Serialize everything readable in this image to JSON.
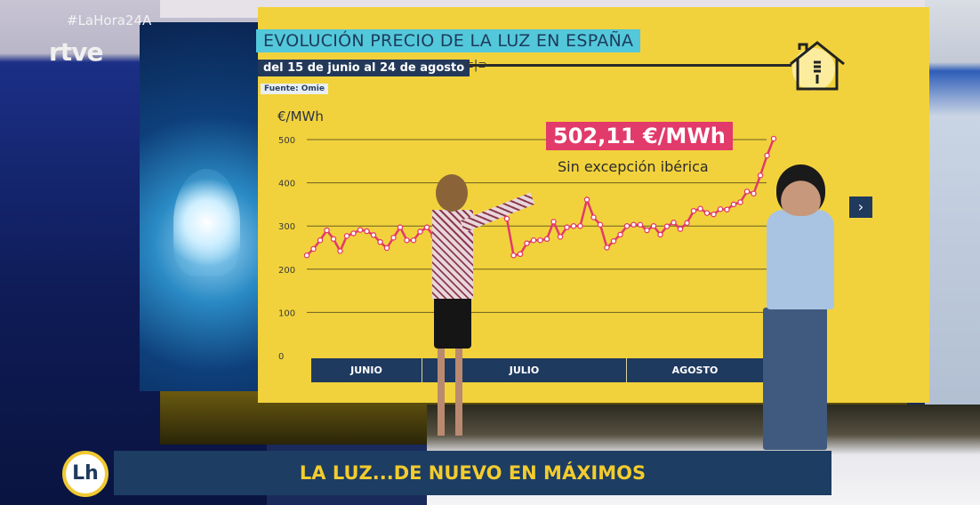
{
  "broadcast": {
    "hashtag": "#LaHora24A",
    "channel_logo": "rtve",
    "program_logo": "Lh",
    "ticker": "LA LUZ...DE NUEVO EN MÁXIMOS"
  },
  "graphic": {
    "title": "EVOLUCIÓN PRECIO DE LA LUZ EN ESPAÑA",
    "subtitle": "del 15 de junio al 24 de agosto",
    "source": "Fuente: Omie",
    "callout_value": "502,11 €/MWh",
    "callout_note": "Sin excepción ibérica",
    "nav_icon": "chevron-right-icon",
    "colors": {
      "background": "#f2d23c",
      "line": "#e23a6a",
      "title_bg": "#53c8da",
      "navy": "#1f3a5f"
    }
  },
  "chart_data": {
    "type": "line",
    "ylabel": "€/MWh",
    "ylim": [
      0,
      500
    ],
    "yticks": [
      "0",
      "100",
      "200",
      "300",
      "400",
      "500"
    ],
    "x_categories": [
      "JUNIO",
      "JULIO",
      "AGOSTO"
    ],
    "grid": true,
    "series": [
      {
        "points": [
          [
            "2022-06-15",
            232
          ],
          [
            "2022-06-16",
            247
          ],
          [
            "2022-06-17",
            267
          ],
          [
            "2022-06-18",
            290
          ],
          [
            "2022-06-19",
            270
          ],
          [
            "2022-06-20",
            242
          ],
          [
            "2022-06-21",
            277
          ],
          [
            "2022-06-22",
            283
          ],
          [
            "2022-06-23",
            291
          ],
          [
            "2022-06-24",
            288
          ],
          [
            "2022-06-25",
            279
          ],
          [
            "2022-06-26",
            263
          ],
          [
            "2022-06-27",
            249
          ],
          [
            "2022-06-28",
            273
          ],
          [
            "2022-06-29",
            297
          ],
          [
            "2022-06-30",
            267
          ],
          [
            "2022-07-01",
            267
          ],
          [
            "2022-07-02",
            287
          ],
          [
            "2022-07-03",
            297
          ],
          [
            "2022-07-04",
            277
          ],
          [
            "2022-07-05",
            307
          ],
          [
            "2022-07-06",
            303
          ],
          [
            "2022-07-14",
            340
          ],
          [
            "2022-07-15",
            317
          ],
          [
            "2022-07-16",
            232
          ],
          [
            "2022-07-17",
            235
          ],
          [
            "2022-07-18",
            260
          ],
          [
            "2022-07-19",
            267
          ],
          [
            "2022-07-20",
            267
          ],
          [
            "2022-07-21",
            270
          ],
          [
            "2022-07-22",
            310
          ],
          [
            "2022-07-23",
            275
          ],
          [
            "2022-07-24",
            297
          ],
          [
            "2022-07-25",
            300
          ],
          [
            "2022-07-26",
            300
          ],
          [
            "2022-07-27",
            361
          ],
          [
            "2022-07-28",
            320
          ],
          [
            "2022-07-29",
            303
          ],
          [
            "2022-07-30",
            250
          ],
          [
            "2022-07-31",
            265
          ],
          [
            "2022-08-01",
            280
          ],
          [
            "2022-08-02",
            300
          ],
          [
            "2022-08-03",
            303
          ],
          [
            "2022-08-04",
            303
          ],
          [
            "2022-08-05",
            290
          ],
          [
            "2022-08-06",
            300
          ],
          [
            "2022-08-07",
            280
          ],
          [
            "2022-08-08",
            299
          ],
          [
            "2022-08-09",
            308
          ],
          [
            "2022-08-10",
            293
          ],
          [
            "2022-08-11",
            307
          ],
          [
            "2022-08-12",
            335
          ],
          [
            "2022-08-13",
            340
          ],
          [
            "2022-08-14",
            330
          ],
          [
            "2022-08-15",
            327
          ],
          [
            "2022-08-16",
            339
          ],
          [
            "2022-08-17",
            338
          ],
          [
            "2022-08-18",
            350
          ],
          [
            "2022-08-19",
            355
          ],
          [
            "2022-08-20",
            380
          ],
          [
            "2022-08-21",
            375
          ],
          [
            "2022-08-22",
            417
          ],
          [
            "2022-08-23",
            463
          ],
          [
            "2022-08-24",
            502.11
          ]
        ]
      }
    ]
  }
}
